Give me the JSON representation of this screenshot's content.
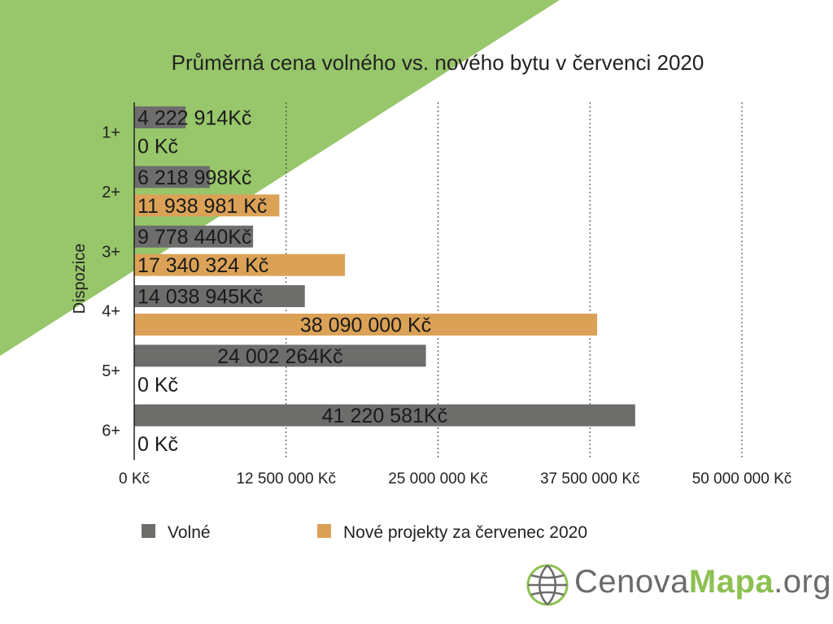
{
  "chart_data": {
    "type": "bar",
    "orientation": "horizontal",
    "title": "Průměrná cena volného vs. nového bytu v červenci 2020",
    "ylabel": "Dispozice",
    "xlabel": "",
    "categories": [
      "1+",
      "2+",
      "3+",
      "4+",
      "5+",
      "6+"
    ],
    "xlim": [
      0,
      50000000
    ],
    "x_ticks": [
      0,
      12500000,
      25000000,
      37500000,
      50000000
    ],
    "x_tick_labels": [
      "0 Kč",
      "12 500 000 Kč",
      "25 000 000 Kč",
      "37 500 000 Kč",
      "50 000 000 Kč"
    ],
    "grid": "vertical dotted",
    "legend_position": "bottom",
    "series": [
      {
        "name": "Volné",
        "color": "#6d6e6c",
        "values": [
          4222914,
          6218998,
          9778440,
          14038945,
          24002264,
          41220581
        ],
        "labels": [
          "4 222 914Kč",
          "6 218 998Kč",
          "9 778 440Kč",
          "14 038 945Kč",
          "24 002 264Kč",
          "41 220 581Kč"
        ]
      },
      {
        "name": "Nové projekty za červenec 2020",
        "color": "#dba257",
        "values": [
          0,
          11938981,
          17340324,
          38090000,
          0,
          0
        ],
        "labels": [
          "0 Kč",
          "11 938 981 Kč",
          "17 340 324 Kč",
          "38 090 000 Kč",
          "0 Kč",
          "0 Kč"
        ]
      }
    ]
  },
  "logo": {
    "text_plain": "Cenova",
    "text_bold": "Mapa",
    "text_suffix": ".org",
    "accent": "#8cc152"
  },
  "background_accent": "#98c66a"
}
